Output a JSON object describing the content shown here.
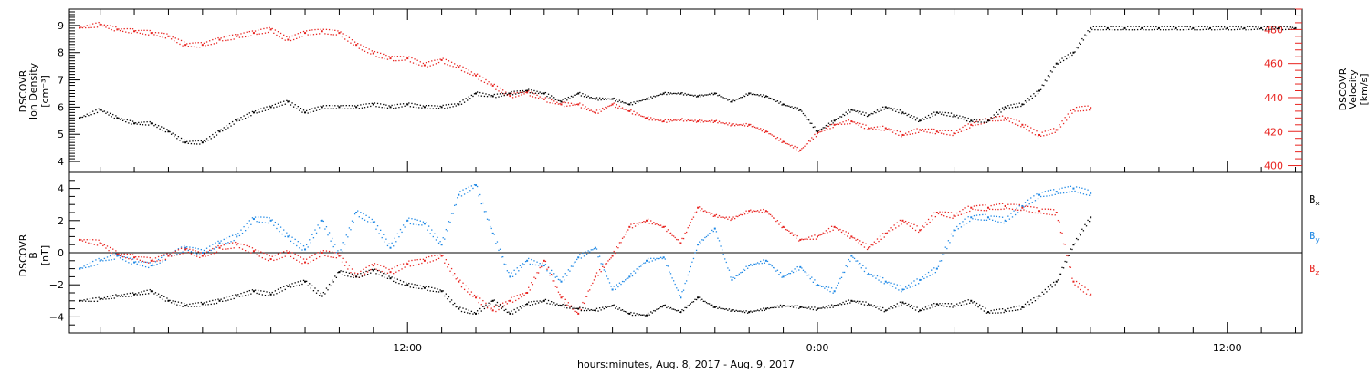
{
  "colors": {
    "bx": "#000000",
    "by": "#1e88e5",
    "bz": "#e8231f",
    "density": "#000000",
    "velocity": "#e8231f",
    "axis": "#000000"
  },
  "x_axis_label": "hours:minutes, Aug.  8, 2017 - Aug.  9, 2017",
  "chart_data": [
    {
      "type": "scatter",
      "title": "",
      "x_unit": "hours since 2017-08-08 00:00",
      "xlim": [
        2.1,
        38.2
      ],
      "x_ticks": [
        {
          "value": 12,
          "label": "12:00"
        },
        {
          "value": 24,
          "label": "0:00"
        },
        {
          "value": 36,
          "label": "12:00"
        }
      ],
      "ylabel_left": [
        "DSCOVR",
        "Ion Density",
        "[cm⁻³]"
      ],
      "ylabel_right": [
        "DSCOVR",
        "Velocity",
        "[km/s]"
      ],
      "ylim_left": [
        3.6,
        9.6
      ],
      "ylim_right": [
        396,
        492
      ],
      "left_ticks": [
        "4",
        "5",
        "6",
        "7",
        "8",
        "9"
      ],
      "right_ticks": [
        "400",
        "420",
        "440",
        "460",
        "480"
      ],
      "series": [
        {
          "axis": "left",
          "x": [
            2.4,
            3.0,
            3.5,
            4.0,
            4.5,
            5.0,
            5.5,
            6.0,
            6.5,
            7.0,
            7.5,
            8.0,
            8.5,
            9.0,
            9.5,
            10.0,
            10.5,
            11.0,
            11.5,
            12.0,
            12.5,
            13.0,
            13.5,
            14.0,
            14.5,
            15.0,
            15.5,
            16.0,
            16.5,
            17.0,
            17.5,
            18.0,
            18.5,
            19.0,
            19.5,
            20.0,
            20.5,
            21.0,
            21.5,
            22.0,
            22.5,
            23.0,
            23.5,
            24.0,
            24.5,
            25.0,
            25.5,
            26.0,
            26.5,
            27.0,
            27.5,
            28.0,
            28.5,
            29.0,
            29.5,
            30.0,
            30.5,
            31.0,
            31.5,
            32.0,
            32.5,
            33.0,
            33.5,
            34.0,
            34.5,
            35.0,
            35.5,
            36.0,
            36.5,
            37.0,
            37.5,
            38.0
          ],
          "y": [
            5.6,
            5.9,
            5.6,
            5.4,
            5.4,
            5.1,
            4.7,
            4.7,
            5.1,
            5.5,
            5.8,
            6.0,
            6.2,
            5.8,
            6.0,
            6.0,
            6.0,
            6.1,
            6.0,
            6.1,
            6.0,
            6.0,
            6.1,
            6.5,
            6.4,
            6.5,
            6.6,
            6.5,
            6.2,
            6.5,
            6.3,
            6.3,
            6.1,
            6.3,
            6.5,
            6.5,
            6.4,
            6.5,
            6.2,
            6.5,
            6.4,
            6.1,
            5.9,
            5.1,
            5.5,
            5.9,
            5.7,
            6.0,
            5.8,
            5.5,
            5.8,
            5.7,
            5.5,
            5.5,
            6.0,
            6.1,
            6.6,
            7.6,
            8.0,
            8.9,
            8.9,
            8.9,
            8.9,
            8.9,
            8.9,
            8.9,
            8.9,
            8.9,
            8.9,
            8.9,
            8.9,
            8.9
          ]
        },
        {
          "axis": "right",
          "x": [
            2.4,
            3.0,
            3.5,
            4.0,
            4.5,
            5.0,
            5.5,
            6.0,
            6.5,
            7.0,
            7.5,
            8.0,
            8.5,
            9.0,
            9.5,
            10.0,
            10.5,
            11.0,
            11.5,
            12.0,
            12.5,
            13.0,
            13.5,
            14.0,
            14.5,
            15.0,
            15.5,
            16.0,
            16.5,
            17.0,
            17.5,
            18.0,
            18.5,
            19.0,
            19.5,
            20.0,
            20.5,
            21.0,
            21.5,
            22.0,
            22.5,
            23.0,
            23.5,
            24.0,
            24.5,
            25.0,
            25.5,
            26.0,
            26.5,
            27.0,
            27.5,
            28.0,
            28.5,
            29.0,
            29.5,
            30.0,
            30.5,
            31.0,
            31.5,
            32.0
          ],
          "y": [
            481,
            483,
            480,
            479,
            478,
            476,
            471,
            471,
            474,
            476,
            478,
            480,
            474,
            478,
            479,
            478,
            471,
            466,
            463,
            463,
            459,
            462,
            458,
            453,
            447,
            441,
            443,
            439,
            436,
            436,
            431,
            436,
            432,
            428,
            426,
            427,
            426,
            426,
            424,
            424,
            420,
            414,
            409,
            419,
            424,
            426,
            422,
            422,
            418,
            421,
            420,
            419,
            424,
            427,
            428,
            424,
            418,
            421,
            433,
            434
          ]
        }
      ]
    },
    {
      "type": "scatter",
      "title": "",
      "x_unit": "hours since 2017-08-08 00:00",
      "xlim": [
        2.1,
        38.2
      ],
      "ylabel_left": [
        "DSCOVR",
        "B",
        "[nT]"
      ],
      "ylim": [
        -5.0,
        5.0
      ],
      "y_ticks": [
        "4",
        "2",
        "0",
        "−2",
        "−4"
      ],
      "zero_line": true,
      "legend_position": "right",
      "series": [
        {
          "name": "Bx",
          "x": [
            2.4,
            3.0,
            3.5,
            4.0,
            4.5,
            5.0,
            5.5,
            6.0,
            6.5,
            7.0,
            7.5,
            8.0,
            8.5,
            9.0,
            9.5,
            10.0,
            10.5,
            11.0,
            11.5,
            12.0,
            12.5,
            13.0,
            13.5,
            14.0,
            14.5,
            15.0,
            15.5,
            16.0,
            16.5,
            17.0,
            17.5,
            18.0,
            18.5,
            19.0,
            19.5,
            20.0,
            20.5,
            21.0,
            21.5,
            22.0,
            22.5,
            23.0,
            23.5,
            24.0,
            24.5,
            25.0,
            25.5,
            26.0,
            26.5,
            27.0,
            27.5,
            28.0,
            28.5,
            29.0,
            29.5,
            30.0,
            30.5,
            31.0,
            31.5,
            32.0
          ],
          "y": [
            -3.0,
            -2.9,
            -2.7,
            -2.6,
            -2.4,
            -3.0,
            -3.3,
            -3.2,
            -3.0,
            -2.7,
            -2.4,
            -2.6,
            -2.1,
            -1.8,
            -2.7,
            -1.2,
            -1.5,
            -1.1,
            -1.6,
            -2.0,
            -2.2,
            -2.4,
            -3.5,
            -3.8,
            -3.0,
            -3.8,
            -3.2,
            -3.0,
            -3.3,
            -3.5,
            -3.6,
            -3.3,
            -3.8,
            -3.9,
            -3.3,
            -3.7,
            -2.8,
            -3.4,
            -3.6,
            -3.7,
            -3.5,
            -3.3,
            -3.4,
            -3.5,
            -3.3,
            -3.0,
            -3.2,
            -3.6,
            -3.1,
            -3.6,
            -3.2,
            -3.3,
            -3.0,
            -3.7,
            -3.6,
            -3.4,
            -2.7,
            -1.8,
            0.5,
            2.2
          ]
        },
        {
          "name": "By",
          "x": [
            2.4,
            3.0,
            3.5,
            4.0,
            4.5,
            5.0,
            5.5,
            6.0,
            6.5,
            7.0,
            7.5,
            8.0,
            8.5,
            9.0,
            9.5,
            10.0,
            10.5,
            11.0,
            11.5,
            12.0,
            12.5,
            13.0,
            13.5,
            14.0,
            14.5,
            15.0,
            15.5,
            16.0,
            16.5,
            17.0,
            17.5,
            18.0,
            18.5,
            19.0,
            19.5,
            20.0,
            20.5,
            21.0,
            21.5,
            22.0,
            22.5,
            23.0,
            23.5,
            24.0,
            24.5,
            25.0,
            25.5,
            26.0,
            26.5,
            27.0,
            27.5,
            28.0,
            28.5,
            29.0,
            29.5,
            30.0,
            30.5,
            31.0,
            31.5,
            32.0
          ],
          "y": [
            -1.0,
            -0.5,
            -0.2,
            -0.6,
            -0.8,
            -0.2,
            0.3,
            0.0,
            0.6,
            1.0,
            2.1,
            2.0,
            1.0,
            0.2,
            2.0,
            -0.2,
            2.5,
            1.9,
            0.3,
            2.0,
            1.8,
            0.5,
            3.6,
            4.2,
            1.2,
            -1.5,
            -0.5,
            -0.8,
            -1.8,
            -0.3,
            0.3,
            -2.3,
            -1.5,
            -0.5,
            -0.3,
            -2.8,
            0.5,
            1.5,
            -1.7,
            -0.8,
            -0.5,
            -1.5,
            -0.9,
            -2.0,
            -2.4,
            -0.2,
            -1.3,
            -1.8,
            -2.3,
            -1.7,
            -1.0,
            1.4,
            2.2,
            2.2,
            2.0,
            2.9,
            3.6,
            3.8,
            4.0,
            3.7
          ]
        },
        {
          "name": "Bz",
          "x": [
            2.4,
            3.0,
            3.5,
            4.0,
            4.5,
            5.0,
            5.5,
            6.0,
            6.5,
            7.0,
            7.5,
            8.0,
            8.5,
            9.0,
            9.5,
            10.0,
            10.5,
            11.0,
            11.5,
            12.0,
            12.5,
            13.0,
            13.5,
            14.0,
            14.5,
            15.0,
            15.5,
            16.0,
            16.5,
            17.0,
            17.5,
            18.0,
            18.5,
            19.0,
            19.5,
            20.0,
            20.5,
            21.0,
            21.5,
            22.0,
            22.5,
            23.0,
            23.5,
            24.0,
            24.5,
            25.0,
            25.5,
            26.0,
            26.5,
            27.0,
            27.5,
            28.0,
            28.5,
            29.0,
            29.5,
            30.0,
            30.5,
            31.0,
            31.5,
            32.0
          ],
          "y": [
            0.8,
            0.6,
            -0.1,
            -0.3,
            -0.5,
            -0.2,
            0.2,
            -0.2,
            0.3,
            0.5,
            0.1,
            -0.4,
            0.0,
            -0.6,
            0.0,
            -0.2,
            -1.5,
            -0.8,
            -1.2,
            -0.7,
            -0.5,
            -0.2,
            -1.8,
            -2.8,
            -3.6,
            -3.0,
            -2.5,
            -0.5,
            -2.8,
            -3.8,
            -1.5,
            -0.2,
            1.6,
            2.0,
            1.6,
            0.6,
            2.8,
            2.3,
            2.1,
            2.6,
            2.6,
            1.6,
            0.8,
            1.0,
            1.6,
            1.0,
            0.3,
            1.2,
            2.0,
            1.4,
            2.5,
            2.3,
            2.8,
            2.8,
            2.9,
            2.8,
            2.6,
            2.5,
            -1.8,
            -2.6
          ]
        }
      ]
    }
  ]
}
